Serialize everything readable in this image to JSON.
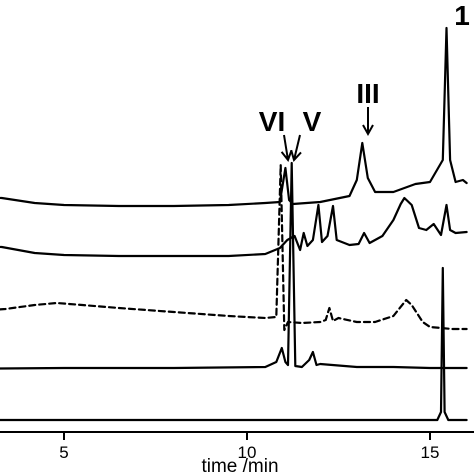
{
  "chart_data": {
    "type": "line",
    "title": "",
    "xlabel": "time /min",
    "ylabel": "",
    "xlim": [
      1.6,
      16.0
    ],
    "x_ticks": [
      5,
      10,
      15
    ],
    "tick_labels": [
      "5",
      "10",
      "15"
    ],
    "grid": false,
    "legend": "none",
    "peak_labels": [
      {
        "text": "VI",
        "time": 10.95,
        "arrow": true
      },
      {
        "text": "V",
        "time": 11.2,
        "arrow": true
      },
      {
        "text": "III",
        "time": 13.15,
        "arrow": true
      },
      {
        "text": "1",
        "time": 15.45,
        "arrow": false
      }
    ],
    "series": [
      {
        "style": "solid",
        "points": [
          [
            1.6,
            195
          ],
          [
            2.6,
            197
          ],
          [
            3.3,
            198
          ],
          [
            4.2,
            203
          ],
          [
            5.0,
            205
          ],
          [
            6.5,
            206
          ],
          [
            8.0,
            206
          ],
          [
            9.5,
            205
          ],
          [
            10.5,
            203
          ],
          [
            10.9,
            202
          ],
          [
            11.05,
            168
          ],
          [
            11.15,
            200
          ],
          [
            11.25,
            204
          ],
          [
            12.0,
            202
          ],
          [
            12.8,
            196
          ],
          [
            13.0,
            180
          ],
          [
            13.15,
            143
          ],
          [
            13.3,
            178
          ],
          [
            13.5,
            192
          ],
          [
            14.0,
            192
          ],
          [
            14.6,
            184
          ],
          [
            15.0,
            182
          ],
          [
            15.35,
            160
          ],
          [
            15.45,
            28
          ],
          [
            15.55,
            160
          ],
          [
            15.7,
            182
          ],
          [
            15.9,
            180
          ],
          [
            16.0,
            183
          ]
        ]
      },
      {
        "style": "solid",
        "points": [
          [
            1.6,
            245
          ],
          [
            2.6,
            246
          ],
          [
            3.3,
            247
          ],
          [
            4.2,
            253
          ],
          [
            5.0,
            255
          ],
          [
            6.5,
            256
          ],
          [
            8.0,
            256
          ],
          [
            9.5,
            256
          ],
          [
            10.5,
            254
          ],
          [
            10.9,
            248
          ],
          [
            11.1,
            240
          ],
          [
            11.3,
            236
          ],
          [
            11.45,
            250
          ],
          [
            11.55,
            233
          ],
          [
            11.65,
            246
          ],
          [
            11.8,
            240
          ],
          [
            11.95,
            205
          ],
          [
            12.05,
            242
          ],
          [
            12.2,
            236
          ],
          [
            12.35,
            206
          ],
          [
            12.45,
            240
          ],
          [
            12.8,
            245
          ],
          [
            13.05,
            244
          ],
          [
            13.2,
            233
          ],
          [
            13.35,
            243
          ],
          [
            13.7,
            236
          ],
          [
            14.0,
            220
          ],
          [
            14.2,
            204
          ],
          [
            14.3,
            198
          ],
          [
            14.5,
            205
          ],
          [
            14.7,
            228
          ],
          [
            14.9,
            230
          ],
          [
            15.1,
            224
          ],
          [
            15.3,
            235
          ],
          [
            15.45,
            205
          ],
          [
            15.55,
            230
          ],
          [
            15.7,
            233
          ],
          [
            16.0,
            232
          ]
        ]
      },
      {
        "style": "dashed",
        "points": [
          [
            1.6,
            310
          ],
          [
            2.6,
            311
          ],
          [
            3.4,
            309
          ],
          [
            4.2,
            305
          ],
          [
            4.8,
            303
          ],
          [
            5.5,
            305
          ],
          [
            6.5,
            308
          ],
          [
            8.0,
            312
          ],
          [
            9.5,
            316
          ],
          [
            10.5,
            318
          ],
          [
            10.8,
            317
          ],
          [
            10.92,
            165
          ],
          [
            11.02,
            330
          ],
          [
            11.12,
            322
          ],
          [
            11.5,
            323
          ],
          [
            12.0,
            322
          ],
          [
            12.15,
            320
          ],
          [
            12.25,
            308
          ],
          [
            12.35,
            321
          ],
          [
            12.5,
            318
          ],
          [
            13.0,
            322
          ],
          [
            13.5,
            322
          ],
          [
            14.0,
            316
          ],
          [
            14.35,
            300
          ],
          [
            14.5,
            305
          ],
          [
            14.8,
            322
          ],
          [
            15.0,
            327
          ],
          [
            15.3,
            328
          ],
          [
            15.6,
            329
          ],
          [
            16.0,
            329
          ]
        ]
      },
      {
        "style": "solid",
        "points": [
          [
            1.6,
            369
          ],
          [
            5.0,
            368
          ],
          [
            8.0,
            368
          ],
          [
            10.5,
            367
          ],
          [
            10.8,
            362
          ],
          [
            10.95,
            348
          ],
          [
            11.05,
            362
          ],
          [
            11.12,
            365
          ],
          [
            11.22,
            163
          ],
          [
            11.32,
            366
          ],
          [
            11.5,
            367
          ],
          [
            11.7,
            360
          ],
          [
            11.8,
            352
          ],
          [
            11.9,
            365
          ],
          [
            12.0,
            364
          ],
          [
            13.0,
            367
          ],
          [
            14.0,
            367
          ],
          [
            15.0,
            368
          ],
          [
            16.0,
            368
          ]
        ]
      },
      {
        "style": "solid",
        "points": [
          [
            1.6,
            420
          ],
          [
            5.0,
            420
          ],
          [
            8.0,
            420
          ],
          [
            10.0,
            420
          ],
          [
            12.0,
            420
          ],
          [
            14.0,
            420
          ],
          [
            15.2,
            420
          ],
          [
            15.3,
            412
          ],
          [
            15.35,
            268
          ],
          [
            15.4,
            412
          ],
          [
            15.5,
            420
          ],
          [
            16.0,
            420
          ]
        ]
      }
    ]
  }
}
